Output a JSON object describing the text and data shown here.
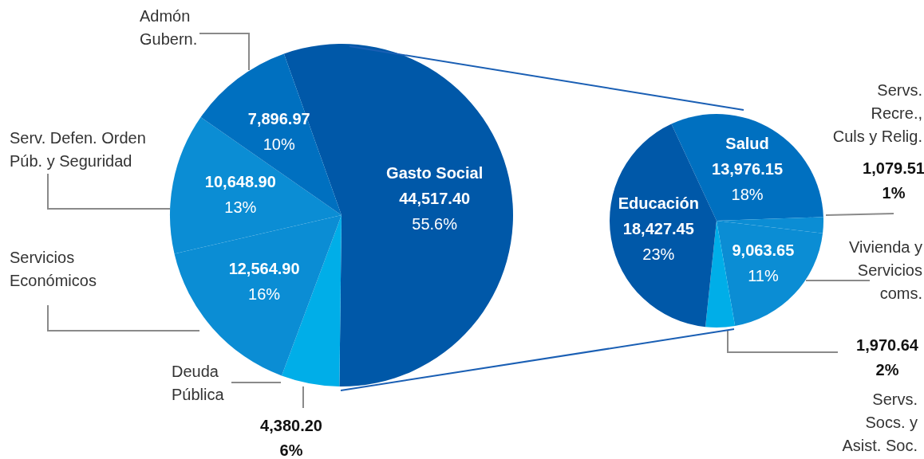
{
  "chart_data": [
    {
      "type": "pie",
      "categories": [
        "Gasto Social",
        "Deuda\nPública",
        "Servicios\nEconómicos",
        "Serv. Defen. Orden\nPúb. y Seguridad",
        "Admón\nGubern."
      ],
      "values": [
        44517.4,
        4380.2,
        12564.9,
        10648.9,
        7896.97
      ],
      "colors": [
        "#0058a8",
        "#00aee8",
        "#0b8dd4",
        "#0b8dd4",
        "#0070c0"
      ],
      "value_labels": [
        "44,517.40\n55.6%",
        "4,380.20\n6%",
        "12,564.90\n16%",
        "10,648.90\n13%",
        "7,896.97\n10%"
      ]
    },
    {
      "type": "pie",
      "categories": [
        "Salud",
        "Servs.\nRecre.,\nCuls y Relig.",
        "Vivienda y\nServicios\ncoms.",
        "Servs.\nSocs. y\nAsist. Soc.",
        "Educación"
      ],
      "values": [
        13976.15,
        1079.51,
        9063.65,
        1970.64,
        18427.45
      ],
      "colors": [
        "#0070c0",
        "#0b8dd4",
        "#0b8dd4",
        "#00aee8",
        "#0058a8"
      ],
      "value_labels": [
        "13,976.15\n18%",
        "1,079.51\n1%",
        "9,063.65\n11%",
        "1,970.64\n2%",
        "18,427.45\n23%"
      ]
    }
  ]
}
